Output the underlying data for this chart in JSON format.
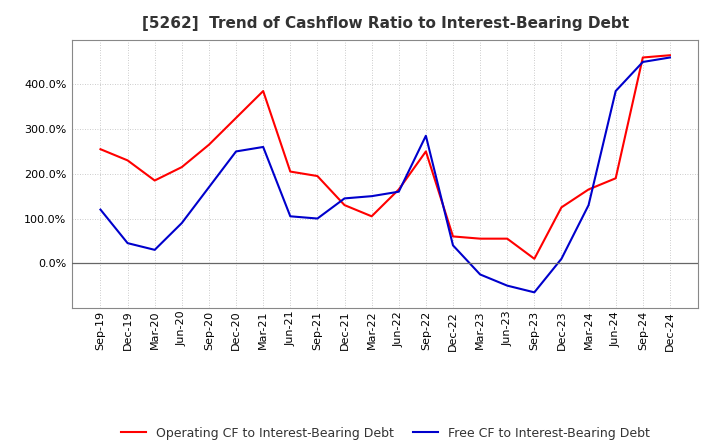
{
  "title": "[5262]  Trend of Cashflow Ratio to Interest-Bearing Debt",
  "x_labels": [
    "Sep-19",
    "Dec-19",
    "Mar-20",
    "Jun-20",
    "Sep-20",
    "Dec-20",
    "Mar-21",
    "Jun-21",
    "Sep-21",
    "Dec-21",
    "Mar-22",
    "Jun-22",
    "Sep-22",
    "Dec-22",
    "Mar-23",
    "Jun-23",
    "Sep-23",
    "Dec-23",
    "Mar-24",
    "Jun-24",
    "Sep-24",
    "Dec-24"
  ],
  "operating_cf": [
    255,
    230,
    185,
    215,
    265,
    325,
    385,
    205,
    195,
    130,
    105,
    165,
    250,
    60,
    55,
    55,
    10,
    125,
    165,
    190,
    460,
    465
  ],
  "free_cf": [
    120,
    45,
    30,
    90,
    170,
    250,
    260,
    105,
    100,
    145,
    150,
    160,
    285,
    40,
    -25,
    -50,
    -65,
    10,
    130,
    385,
    450,
    460
  ],
  "operating_color": "#ff0000",
  "free_color": "#0000cc",
  "background_color": "#ffffff",
  "plot_bg_color": "#ffffff",
  "grid_color": "#bbbbbb",
  "ylim": [
    -100,
    500
  ],
  "yticks": [
    0,
    100,
    200,
    300,
    400
  ],
  "ytick_labels": [
    "0.0%",
    "100.0%",
    "200.0%",
    "300.0%",
    "400.0%"
  ],
  "legend_operating": "Operating CF to Interest-Bearing Debt",
  "legend_free": "Free CF to Interest-Bearing Debt",
  "title_fontsize": 11,
  "tick_fontsize": 8,
  "legend_fontsize": 9
}
